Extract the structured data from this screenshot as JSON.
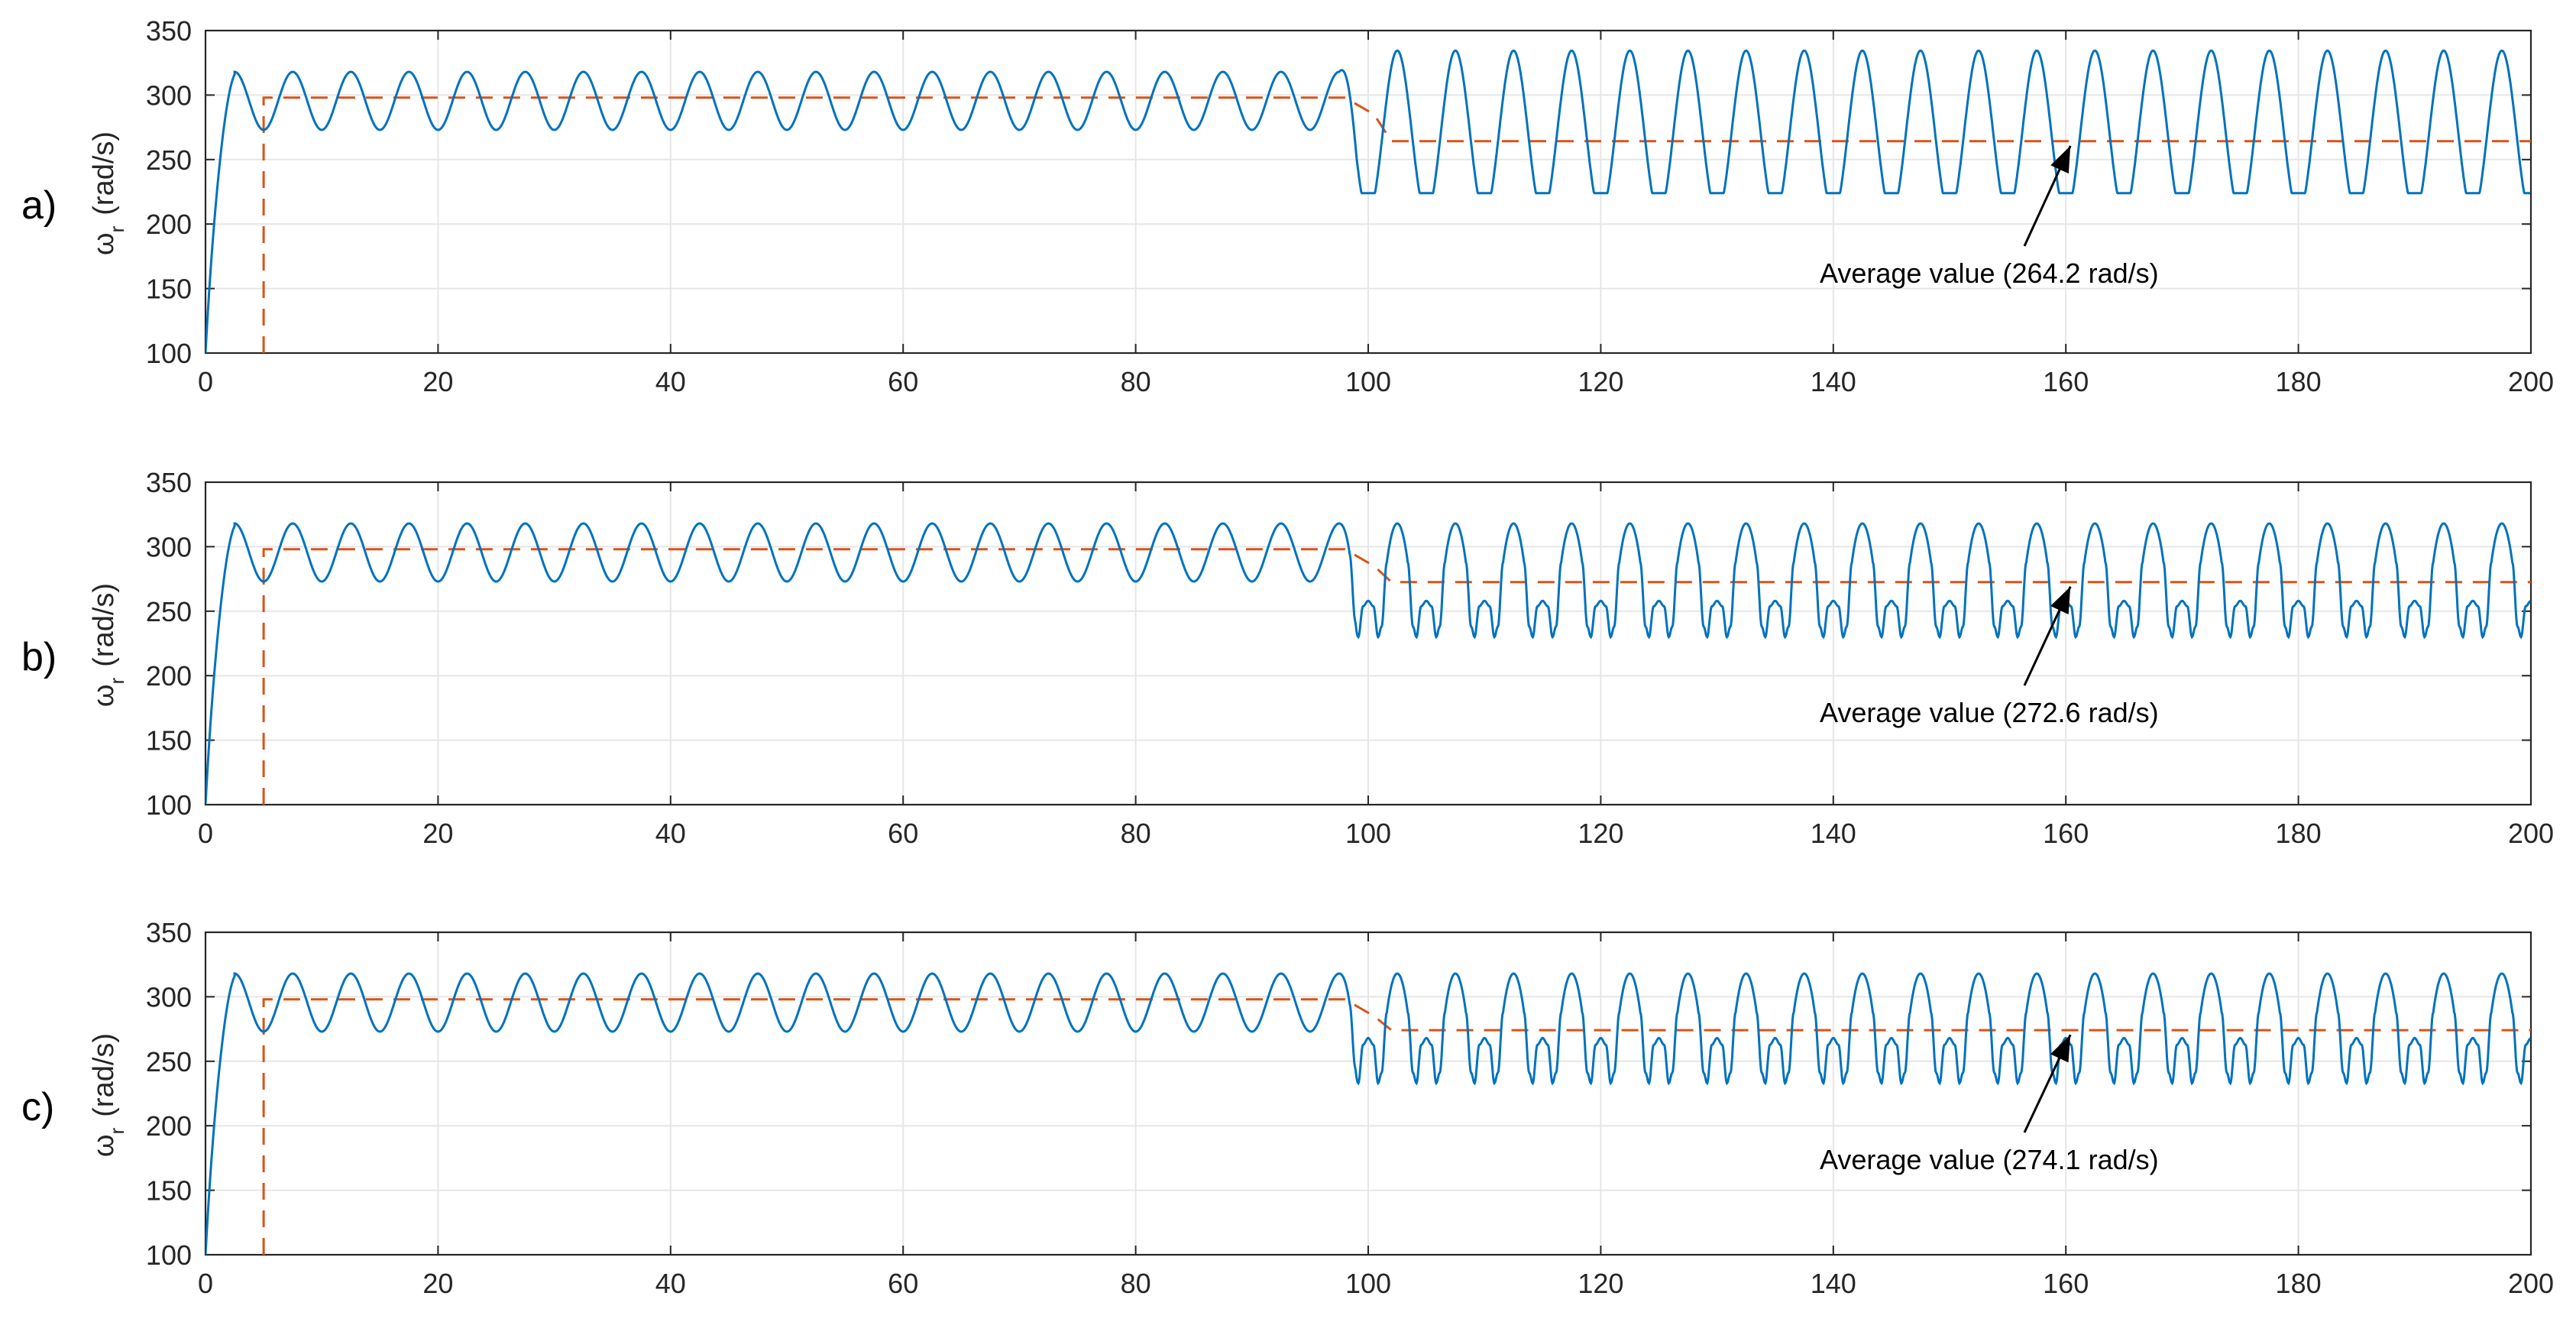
{
  "chart_data": [
    {
      "type": "line",
      "panel_label": "a)",
      "ylabel": {
        "symbol": "ω",
        "subscript": "r",
        "unit": "(rad/s)"
      },
      "xlim": [
        0,
        200
      ],
      "ylim": [
        100,
        350
      ],
      "xticks": [
        0,
        20,
        40,
        60,
        80,
        100,
        120,
        140,
        160,
        180,
        200
      ],
      "yticks": [
        100,
        150,
        200,
        250,
        300,
        350
      ],
      "grid": true,
      "series": [
        {
          "role": "speed",
          "color": "#0072bd",
          "startup": {
            "x": [
              0,
              2.5
            ],
            "y": [
              100,
              316
            ]
          },
          "segments": [
            {
              "x_start": 0,
              "x_end": 98,
              "period": 5,
              "min": 273,
              "max": 318,
              "waveform": "sinusoidal"
            },
            {
              "x_start": 98,
              "x_end": 200,
              "period": 5,
              "min": 224,
              "max": 318,
              "waveform": "flat-bottomed"
            }
          ]
        },
        {
          "role": "average",
          "color": "#d95319",
          "x": [
            5,
            5,
            98,
            100.5,
            102,
            200
          ],
          "y": [
            100,
            298,
            298,
            285,
            264.2,
            264.2
          ]
        }
      ],
      "annotation": {
        "text": "Average value (264.2 rad/s)",
        "arrow_to": [
          160,
          264.2
        ]
      }
    },
    {
      "type": "line",
      "panel_label": "b)",
      "ylabel": {
        "symbol": "ω",
        "subscript": "r",
        "unit": "(rad/s)"
      },
      "xlim": [
        0,
        200
      ],
      "ylim": [
        100,
        350
      ],
      "xticks": [
        0,
        20,
        40,
        60,
        80,
        100,
        120,
        140,
        160,
        180,
        200
      ],
      "yticks": [
        100,
        150,
        200,
        250,
        300,
        350
      ],
      "grid": true,
      "series": [
        {
          "role": "speed",
          "color": "#0072bd",
          "startup": {
            "x": [
              0,
              2.5
            ],
            "y": [
              100,
              316
            ]
          },
          "segments": [
            {
              "x_start": 0,
              "x_end": 98,
              "period": 5,
              "min": 273,
              "max": 318,
              "waveform": "sinusoidal"
            },
            {
              "x_start": 98,
              "x_end": 200,
              "period": 5,
              "min": 230,
              "max": 318,
              "inner_peak": 258,
              "waveform": "double-dip"
            }
          ]
        },
        {
          "role": "average",
          "color": "#d95319",
          "x": [
            5,
            5,
            98,
            100.5,
            102,
            200
          ],
          "y": [
            100,
            298,
            298,
            285,
            272.6,
            272.6
          ]
        }
      ],
      "annotation": {
        "text": "Average value (272.6 rad/s)",
        "arrow_to": [
          160,
          272.6
        ]
      }
    },
    {
      "type": "line",
      "panel_label": "c)",
      "ylabel": {
        "symbol": "ω",
        "subscript": "r",
        "unit": "(rad/s)"
      },
      "xlim": [
        0,
        200
      ],
      "ylim": [
        100,
        350
      ],
      "xticks": [
        0,
        20,
        40,
        60,
        80,
        100,
        120,
        140,
        160,
        180,
        200
      ],
      "yticks": [
        100,
        150,
        200,
        250,
        300,
        350
      ],
      "grid": true,
      "series": [
        {
          "role": "speed",
          "color": "#0072bd",
          "startup": {
            "x": [
              0,
              2.5
            ],
            "y": [
              100,
              316
            ]
          },
          "segments": [
            {
              "x_start": 0,
              "x_end": 98,
              "period": 5,
              "min": 273,
              "max": 318,
              "waveform": "sinusoidal"
            },
            {
              "x_start": 98,
              "x_end": 200,
              "period": 5,
              "min": 233,
              "max": 318,
              "inner_peak": 268,
              "waveform": "double-dip"
            }
          ]
        },
        {
          "role": "average",
          "color": "#d95319",
          "x": [
            5,
            5,
            98,
            100.5,
            102,
            200
          ],
          "y": [
            100,
            298,
            298,
            285,
            274.1,
            274.1
          ]
        }
      ],
      "annotation": {
        "text": "Average value (274.1 rad/s)",
        "arrow_to": [
          160,
          274.1
        ]
      }
    }
  ]
}
